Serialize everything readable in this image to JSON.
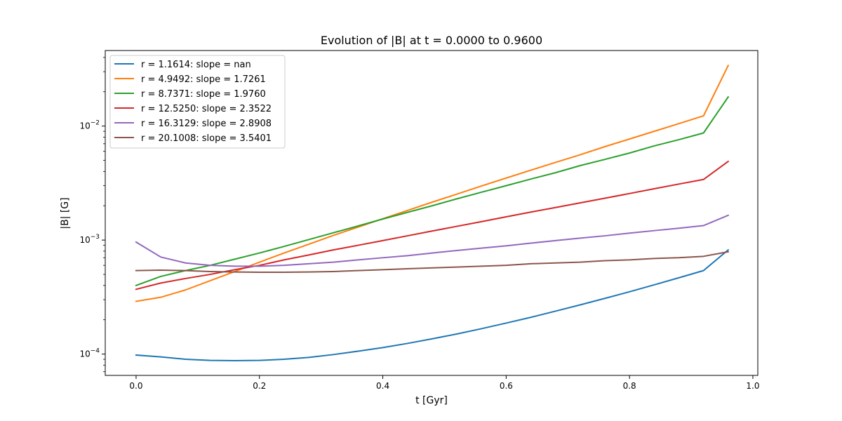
{
  "chart_data": {
    "type": "line",
    "title": "Evolution of |B| at t = 0.0000 to 0.9600",
    "xlabel": "t [Gyr]",
    "ylabel": "|B| [G]",
    "xlim": [
      -0.05,
      1.008
    ],
    "ylim": [
      6.5e-05,
      0.046
    ],
    "yscale": "log",
    "grid": false,
    "legend_position": "upper left",
    "x_ticks": [
      {
        "value": 0.0,
        "label": "0.0"
      },
      {
        "value": 0.2,
        "label": "0.2"
      },
      {
        "value": 0.4,
        "label": "0.4"
      },
      {
        "value": 0.6,
        "label": "0.6"
      },
      {
        "value": 0.8,
        "label": "0.8"
      },
      {
        "value": 1.0,
        "label": "1.0"
      }
    ],
    "y_ticks": [
      {
        "value": 0.0001,
        "base": "10",
        "exp": "−4"
      },
      {
        "value": 0.001,
        "base": "10",
        "exp": "−3"
      },
      {
        "value": 0.01,
        "base": "10",
        "exp": "−2"
      }
    ],
    "x": [
      0.0,
      0.04,
      0.08,
      0.12,
      0.16,
      0.2,
      0.24,
      0.28,
      0.32,
      0.36,
      0.4,
      0.44,
      0.48,
      0.52,
      0.56,
      0.6,
      0.64,
      0.68,
      0.72,
      0.76,
      0.8,
      0.84,
      0.88,
      0.92,
      0.96
    ],
    "series": [
      {
        "name": "r = 1.1614: slope = nan",
        "color": "#1f77b4",
        "values": [
          9.8e-05,
          9.45e-05,
          9e-05,
          8.8e-05,
          8.75e-05,
          8.8e-05,
          9e-05,
          9.35e-05,
          9.9e-05,
          0.000106,
          0.000114,
          0.000124,
          0.000136,
          0.00015,
          0.000167,
          0.000187,
          0.00021,
          0.000238,
          0.00027,
          0.000308,
          0.000352,
          0.000405,
          0.000467,
          0.00054,
          0.00082
        ]
      },
      {
        "name": "r = 4.9492: slope = 1.7261",
        "color": "#ff7f0e",
        "values": [
          0.00029,
          0.000315,
          0.000365,
          0.00044,
          0.00053,
          0.00064,
          0.00077,
          0.00092,
          0.0011,
          0.0013,
          0.00154,
          0.00182,
          0.00215,
          0.00253,
          0.00298,
          0.0035,
          0.0041,
          0.0048,
          0.0056,
          0.0066,
          0.0077,
          0.009,
          0.0105,
          0.0123,
          0.034
        ]
      },
      {
        "name": "r = 8.7371: slope = 1.9760",
        "color": "#2ca02c",
        "values": [
          0.0004,
          0.00048,
          0.00054,
          0.0006,
          0.00068,
          0.00077,
          0.00088,
          0.00101,
          0.00116,
          0.00133,
          0.00153,
          0.00175,
          0.002,
          0.0023,
          0.00263,
          0.003,
          0.00343,
          0.0039,
          0.0045,
          0.0051,
          0.0058,
          0.0067,
          0.0076,
          0.0087,
          0.018
        ]
      },
      {
        "name": "r = 12.5250: slope = 2.3522",
        "color": "#d62728",
        "values": [
          0.00037,
          0.00042,
          0.00046,
          0.0005,
          0.00055,
          0.0006,
          0.00067,
          0.00074,
          0.00082,
          0.0009,
          0.00099,
          0.00109,
          0.0012,
          0.00132,
          0.00145,
          0.0016,
          0.00176,
          0.00193,
          0.00212,
          0.00233,
          0.00256,
          0.00282,
          0.0031,
          0.0034,
          0.0049
        ]
      },
      {
        "name": "r = 16.3129: slope = 2.8908",
        "color": "#9467bd",
        "values": [
          0.00096,
          0.00071,
          0.00063,
          0.0006,
          0.00059,
          0.00059,
          0.0006,
          0.00062,
          0.00064,
          0.00067,
          0.0007,
          0.00073,
          0.00077,
          0.00081,
          0.00085,
          0.00089,
          0.00094,
          0.00099,
          0.00104,
          0.00109,
          0.00115,
          0.00121,
          0.00127,
          0.00134,
          0.00165
        ]
      },
      {
        "name": "r = 20.1008: slope = 3.5401",
        "color": "#8c564b",
        "values": [
          0.00054,
          0.000545,
          0.00054,
          0.00053,
          0.000525,
          0.000522,
          0.000522,
          0.000525,
          0.00053,
          0.00054,
          0.00055,
          0.00056,
          0.00057,
          0.00058,
          0.00059,
          0.0006,
          0.00062,
          0.00063,
          0.00064,
          0.00066,
          0.00067,
          0.00069,
          0.0007,
          0.00072,
          0.00079
        ]
      }
    ]
  }
}
